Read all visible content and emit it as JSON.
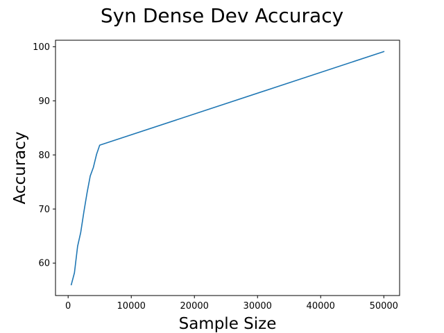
{
  "chart_data": {
    "type": "line",
    "title": "Syn Dense Dev Accuracy",
    "xlabel": "Sample Size",
    "ylabel": "Accuracy",
    "xlim": [
      -2000,
      52500
    ],
    "ylim": [
      54,
      101.2
    ],
    "xticks": [
      0,
      10000,
      20000,
      30000,
      40000,
      50000
    ],
    "yticks": [
      60,
      70,
      80,
      90,
      100
    ],
    "grid": false,
    "series": [
      {
        "color": "#1f77b4",
        "x": [
          500,
          1000,
          1500,
          2000,
          2500,
          3000,
          3500,
          4000,
          4500,
          5000,
          50000
        ],
        "y": [
          56.0,
          58.2,
          63.1,
          65.7,
          69.5,
          73.0,
          76.1,
          77.7,
          80.1,
          81.8,
          99.1
        ]
      }
    ]
  }
}
